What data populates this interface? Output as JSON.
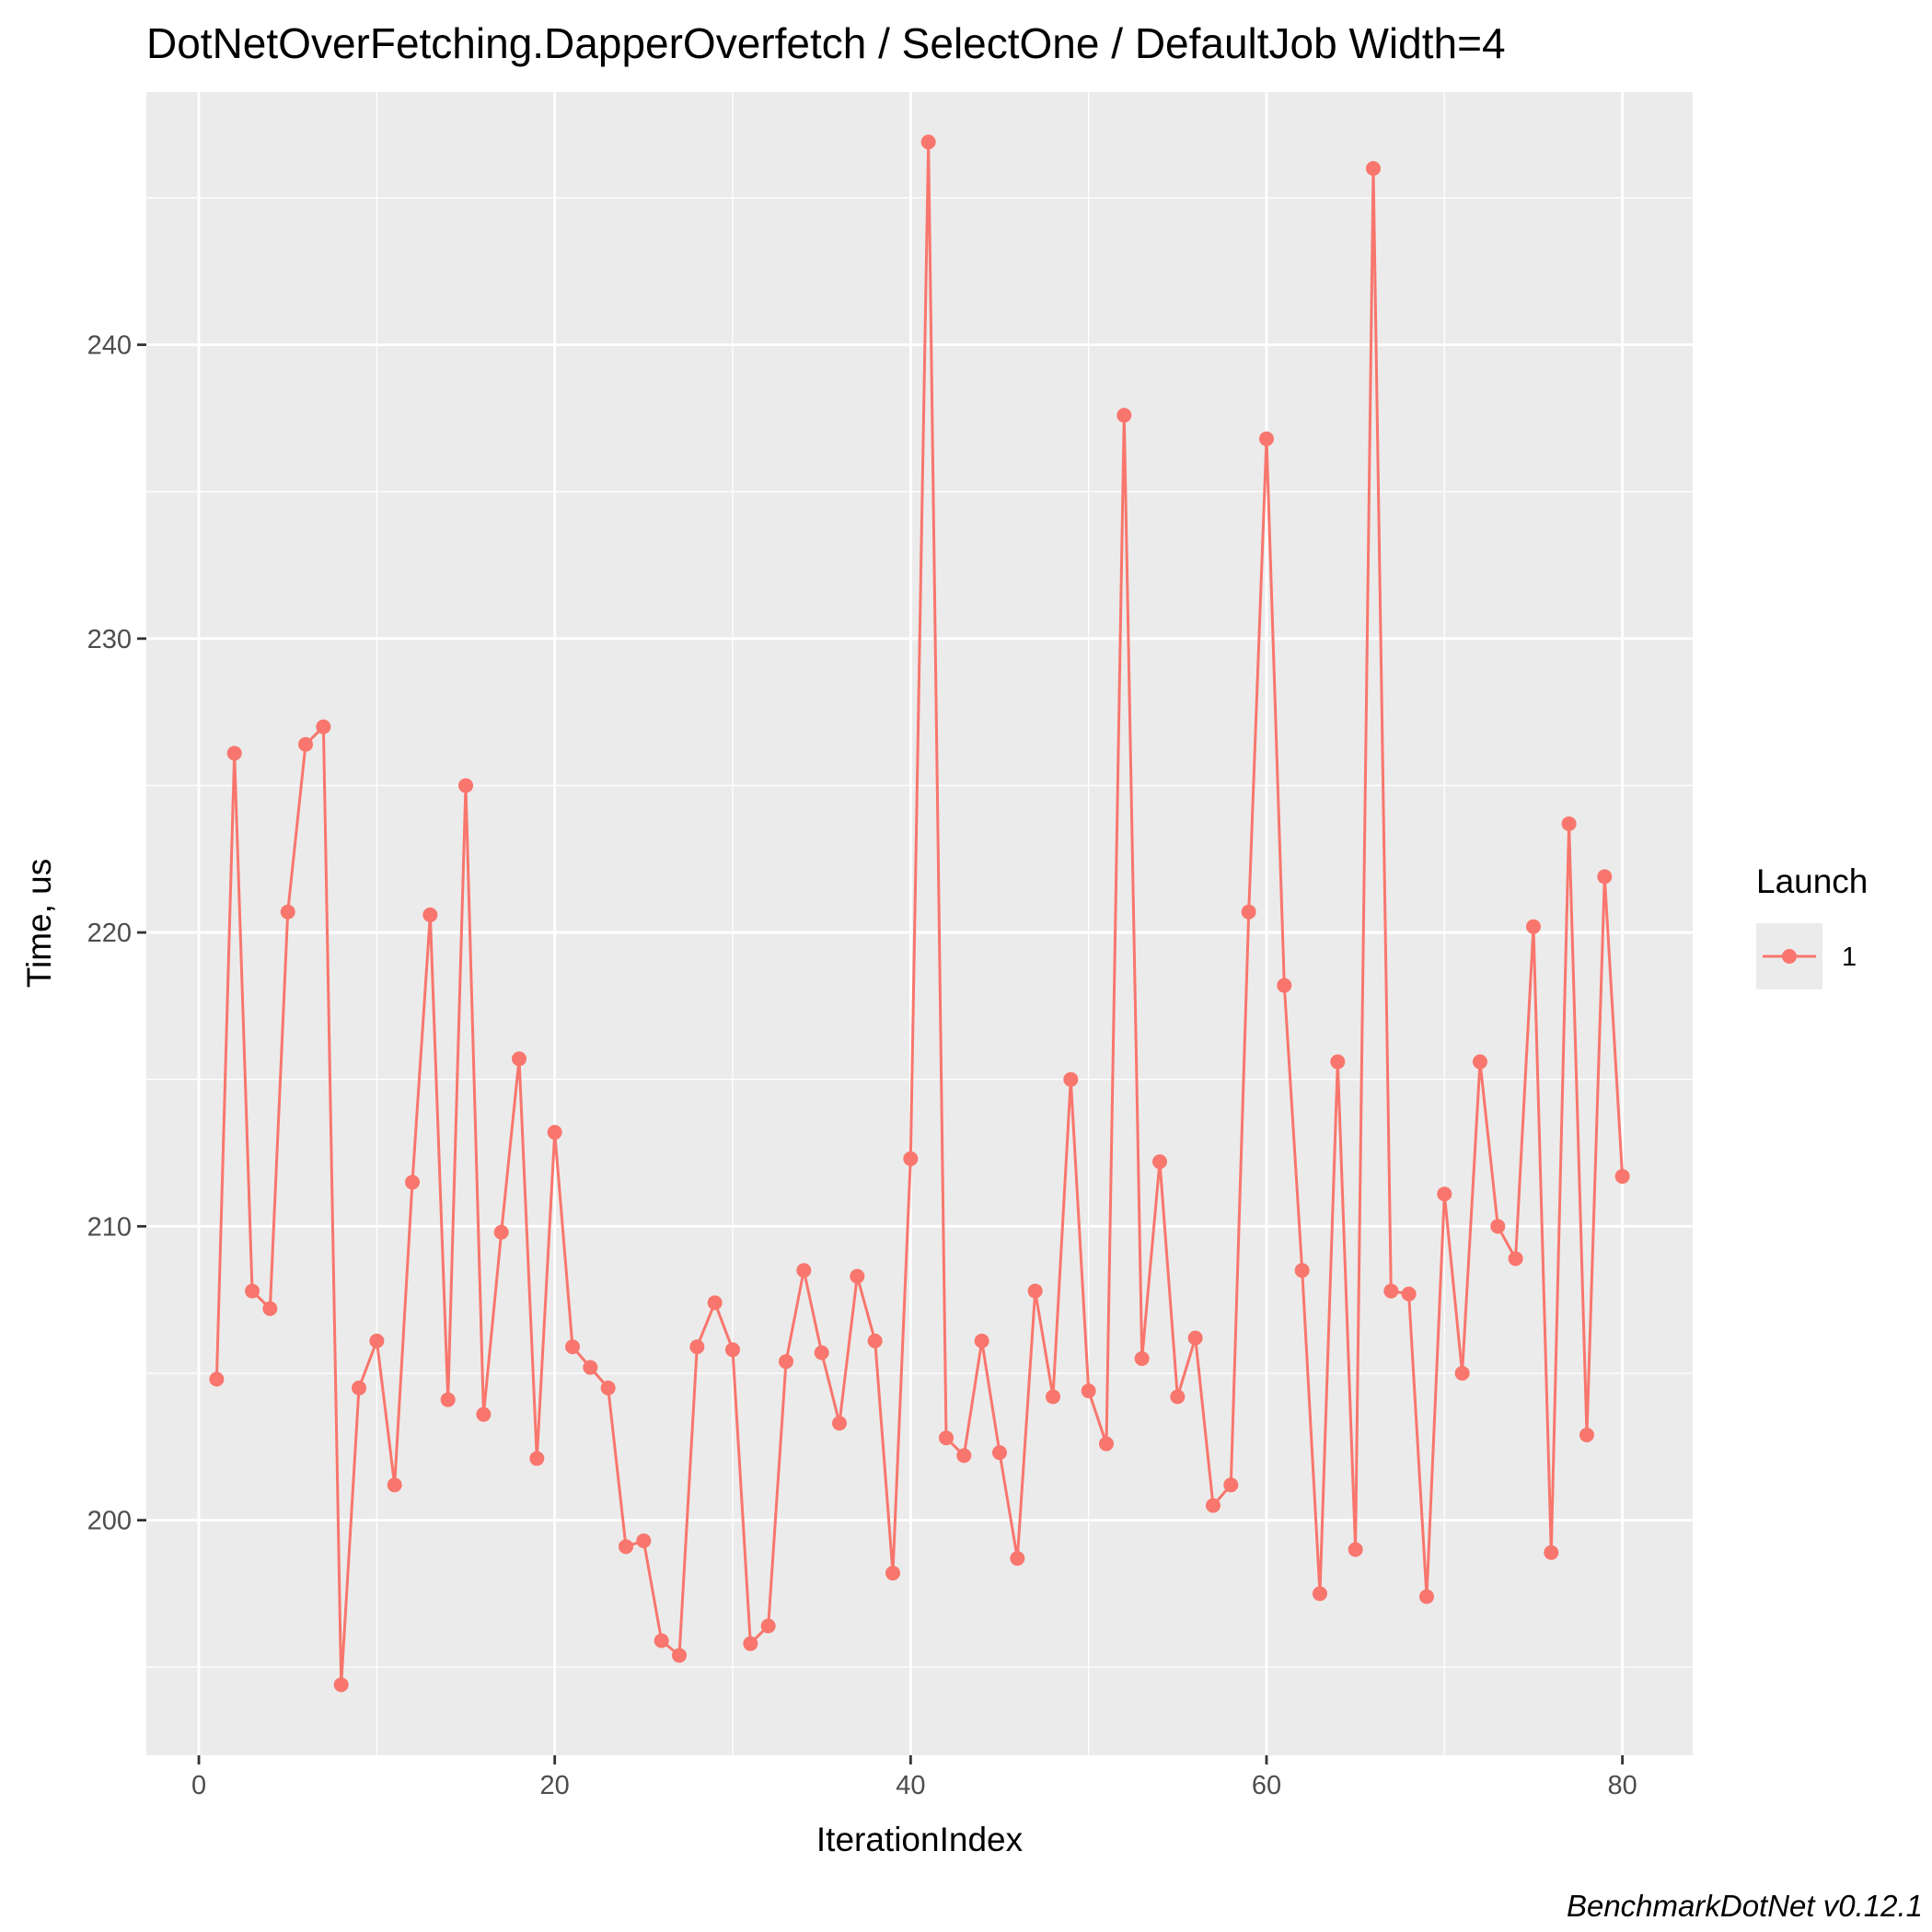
{
  "chart_data": {
    "type": "line",
    "title": "DotNetOverFetching.DapperOverfetch / SelectOne / DefaultJob Width=4",
    "xlabel": "IterationIndex",
    "ylabel": "Time, us",
    "caption": "BenchmarkDotNet v0.12.1",
    "xlim": [
      -2.95,
      83.95
    ],
    "ylim": [
      192.0,
      248.6
    ],
    "x_ticks": [
      0,
      20,
      40,
      60,
      80
    ],
    "y_ticks": [
      200,
      210,
      220,
      230,
      240
    ],
    "x_tick_labels": [
      "0",
      "20",
      "40",
      "60",
      "80"
    ],
    "y_tick_labels": [
      "200",
      "210",
      "220",
      "230",
      "240"
    ],
    "grid": true,
    "legend": {
      "title": "Launch",
      "position": "right",
      "entries": [
        "1"
      ]
    },
    "colors": {
      "series": "#F8766D",
      "panel": "#EBEBEB",
      "grid": "#FFFFFF"
    },
    "series": [
      {
        "name": "1",
        "x": [
          1,
          2,
          3,
          4,
          5,
          6,
          7,
          8,
          9,
          10,
          11,
          12,
          13,
          14,
          15,
          16,
          17,
          18,
          19,
          20,
          21,
          22,
          23,
          24,
          25,
          26,
          27,
          28,
          29,
          30,
          31,
          32,
          33,
          34,
          35,
          36,
          37,
          38,
          39,
          40,
          41,
          42,
          43,
          44,
          45,
          46,
          47,
          48,
          49,
          50,
          51,
          52,
          53,
          54,
          55,
          56,
          57,
          58,
          59,
          60,
          61,
          62,
          63,
          64,
          65,
          66,
          67,
          68,
          69,
          70,
          71,
          72,
          73,
          74,
          75,
          76,
          77,
          78,
          79,
          80
        ],
        "values": [
          204.8,
          226.1,
          207.8,
          207.2,
          220.7,
          226.4,
          227.0,
          194.4,
          204.5,
          206.1,
          201.2,
          211.5,
          220.6,
          204.1,
          225.0,
          203.6,
          209.8,
          215.7,
          202.1,
          213.2,
          205.9,
          205.2,
          204.5,
          199.1,
          199.3,
          195.9,
          195.4,
          205.9,
          207.4,
          205.8,
          195.8,
          196.4,
          205.4,
          208.5,
          205.7,
          203.3,
          208.3,
          206.1,
          198.2,
          212.3,
          246.9,
          202.8,
          202.2,
          206.1,
          202.3,
          198.7,
          207.8,
          204.2,
          215.0,
          204.4,
          202.6,
          237.6,
          205.5,
          212.2,
          204.2,
          206.2,
          200.5,
          201.2,
          220.7,
          236.8,
          218.2,
          208.5,
          197.5,
          215.6,
          199.0,
          246.0,
          207.8,
          207.7,
          197.4,
          211.1,
          205.0,
          215.6,
          210.0,
          208.9,
          220.2,
          198.9,
          223.7,
          202.9,
          221.9,
          211.7
        ]
      }
    ]
  }
}
